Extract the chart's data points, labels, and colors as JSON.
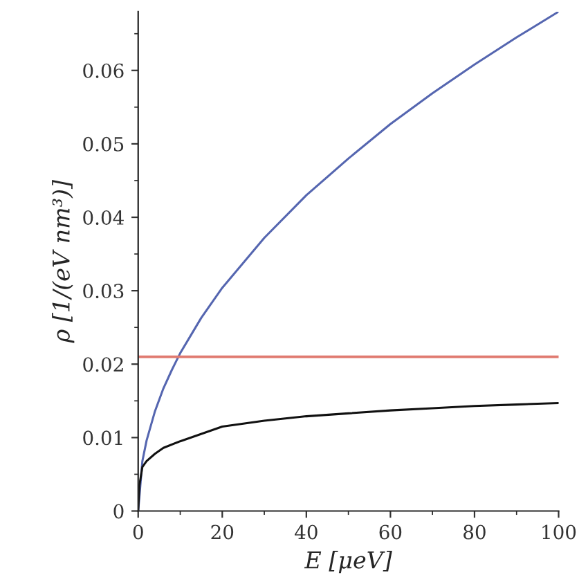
{
  "chart_data": {
    "type": "line",
    "xlabel": "E [μeV]",
    "ylabel": "ρ [1/(eV nm³)]",
    "xlim": [
      0,
      100
    ],
    "xticks": [
      0,
      20,
      40,
      60,
      80,
      100
    ],
    "ylim": [
      0,
      0.068
    ],
    "yticks": [
      0,
      0.01,
      0.02,
      0.03,
      0.04,
      0.05,
      0.06
    ],
    "grid": false,
    "legend": false,
    "marker": "none",
    "line_style": "solid",
    "series": [
      {
        "color": "#5566b0",
        "x": [
          0,
          1,
          2,
          4,
          6,
          8,
          10,
          15,
          20,
          30,
          40,
          50,
          60,
          70,
          80,
          90,
          100
        ],
        "values": [
          0,
          0.0068,
          0.0096,
          0.0136,
          0.0167,
          0.0192,
          0.0215,
          0.0263,
          0.0304,
          0.0372,
          0.043,
          0.048,
          0.0527,
          0.0569,
          0.0608,
          0.0645,
          0.068
        ]
      },
      {
        "color": "#111111",
        "x": [
          0,
          0.3,
          1,
          2,
          4,
          6,
          10,
          20,
          30,
          40,
          50,
          60,
          70,
          80,
          90,
          100
        ],
        "values": [
          0,
          0.0035,
          0.006,
          0.0068,
          0.0078,
          0.0086,
          0.0095,
          0.0115,
          0.0123,
          0.0129,
          0.0133,
          0.0137,
          0.014,
          0.0143,
          0.0145,
          0.0147
        ]
      }
    ],
    "ref_lines": [
      {
        "axis": "y",
        "value": 0.021,
        "color": "#e07a70",
        "line_style": "solid"
      }
    ]
  }
}
